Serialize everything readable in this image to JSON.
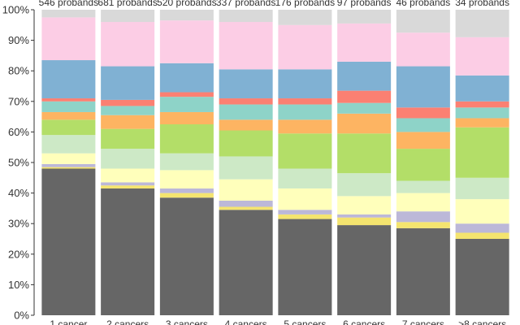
{
  "chart_data": {
    "type": "bar",
    "stacked": true,
    "normalized": true,
    "categories": [
      "1 cancer",
      "2 cancers",
      "3 cancers",
      "4 cancers",
      "5 cancers",
      "6 cancers",
      "7 cancers",
      ">8 cancers"
    ],
    "bar_top_labels": [
      "546 probands",
      "681 probands",
      "520 probands",
      "337 probands",
      "176 probands",
      "97 probands",
      "46 probands",
      "34 probands"
    ],
    "ylim": [
      0,
      100
    ],
    "yticks": [
      0,
      10,
      20,
      30,
      40,
      50,
      60,
      70,
      80,
      90,
      100
    ],
    "ytick_labels": [
      "0%",
      "10%",
      "20%",
      "30%",
      "40%",
      "50%",
      "60%",
      "70%",
      "80%",
      "90%",
      "100%"
    ],
    "xlabel": "",
    "ylabel": "",
    "grid": false,
    "legend": "none",
    "series": [
      {
        "color": "#666666",
        "values": [
          48.0,
          41.5,
          38.5,
          34.5,
          31.5,
          29.5,
          28.5,
          25.0
        ]
      },
      {
        "color": "#f4e46f",
        "values": [
          0.5,
          1.0,
          1.5,
          1.0,
          1.5,
          2.5,
          2.0,
          2.0
        ]
      },
      {
        "color": "#bcb8d8",
        "values": [
          1.0,
          1.0,
          1.5,
          2.0,
          1.5,
          1.0,
          3.5,
          3.0
        ]
      },
      {
        "color": "#ffffbb",
        "values": [
          3.5,
          4.5,
          6.0,
          7.0,
          7.0,
          6.0,
          6.0,
          8.0
        ]
      },
      {
        "color": "#cde9c6",
        "values": [
          6.0,
          6.5,
          5.5,
          7.5,
          6.5,
          7.5,
          4.0,
          7.0
        ]
      },
      {
        "color": "#b3de68",
        "values": [
          5.0,
          6.5,
          9.5,
          8.5,
          11.5,
          13.0,
          10.5,
          16.5
        ]
      },
      {
        "color": "#fdb462",
        "values": [
          2.5,
          4.5,
          4.0,
          3.5,
          4.5,
          6.5,
          5.5,
          3.0
        ]
      },
      {
        "color": "#8ed3c8",
        "values": [
          3.5,
          3.0,
          5.0,
          5.0,
          5.0,
          3.5,
          4.5,
          3.5
        ]
      },
      {
        "color": "#fb8072",
        "values": [
          1.0,
          2.0,
          1.5,
          2.0,
          2.0,
          4.0,
          3.5,
          2.0
        ]
      },
      {
        "color": "#80b1d3",
        "values": [
          12.5,
          11.0,
          9.5,
          9.5,
          9.5,
          9.5,
          13.5,
          8.5
        ]
      },
      {
        "color": "#fccde5",
        "values": [
          14.0,
          14.5,
          14.0,
          15.5,
          14.5,
          12.5,
          11.0,
          12.5
        ]
      },
      {
        "color": "#d9d9d9",
        "values": [
          2.5,
          4.0,
          3.5,
          4.0,
          5.0,
          4.5,
          7.5,
          9.0
        ]
      }
    ]
  }
}
